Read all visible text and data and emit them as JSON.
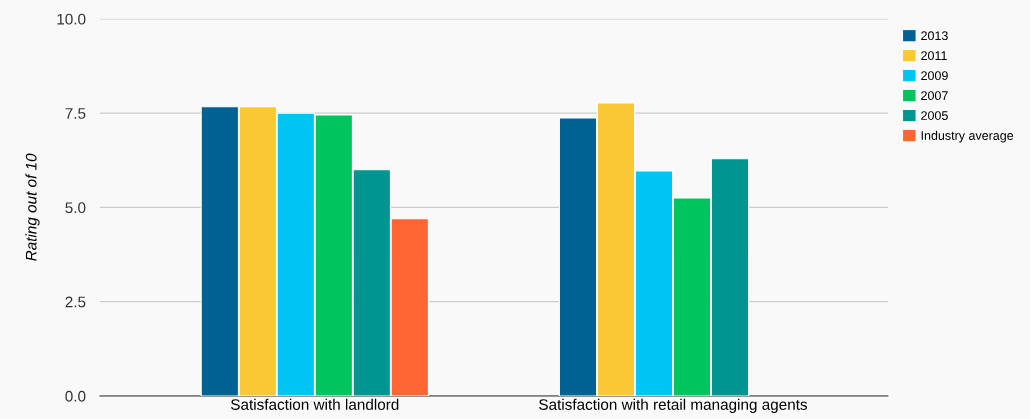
{
  "chart_data": {
    "type": "bar",
    "ylabel": "Rating out of 10",
    "categories": [
      "Satisfaction with landlord",
      "Satisfaction with retail managing agents"
    ],
    "series": [
      {
        "name": "2013",
        "color": "#006193",
        "values": [
          7.67,
          7.37
        ]
      },
      {
        "name": "2011",
        "color": "#f9c834",
        "values": [
          7.67,
          7.77
        ]
      },
      {
        "name": "2009",
        "color": "#00c4f4",
        "values": [
          7.5,
          5.97
        ]
      },
      {
        "name": "2007",
        "color": "#00c55f",
        "values": [
          7.45,
          5.25
        ]
      },
      {
        "name": "2005",
        "color": "#009590",
        "values": [
          6.0,
          6.29
        ]
      },
      {
        "name": "Industry average",
        "color": "#ff6633",
        "values": [
          4.7,
          null
        ]
      }
    ],
    "ylim": [
      0,
      10
    ],
    "yticks": [
      {
        "value": 0,
        "label": "0.0"
      },
      {
        "value": 2.5,
        "label": "2.5"
      },
      {
        "value": 5,
        "label": "5.0"
      },
      {
        "value": 7.5,
        "label": "7.5"
      },
      {
        "value": 10,
        "label": "10.0"
      }
    ],
    "grid": "y",
    "legend": "right"
  }
}
